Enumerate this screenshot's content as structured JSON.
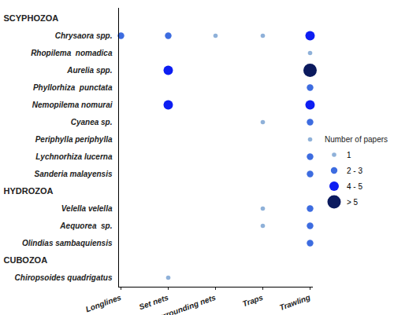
{
  "chart_data": {
    "type": "scatter",
    "categories": [
      "Longlines",
      "Set nets",
      "Surrounding nets",
      "Traps",
      "Trawling"
    ],
    "groups": [
      {
        "name": "SCYPHOZOA",
        "species": [
          "Chrysaora spp.",
          "Rhopilema  nomadica",
          "Aurelia spp.",
          "Phyllorhiza  punctata",
          "Nemopilema nomurai",
          "Cyanea sp.",
          "Periphylla periphylla",
          "Lychnorhiza lucerna",
          "Sanderia malayensis"
        ]
      },
      {
        "name": "HYDROZOA",
        "species": [
          "Velella velella",
          "Aequorea  sp.",
          "Olindias sambaquiensis"
        ]
      },
      {
        "name": "CUBOZOA",
        "species": [
          "Chiropsoides quadrigatus"
        ]
      }
    ],
    "legend_title": "Number of papers",
    "size_classes": [
      {
        "label": "1",
        "color": "#8fb1d9"
      },
      {
        "label": "2 - 3",
        "color": "#3d6ce0"
      },
      {
        "label": "4 - 5",
        "color": "#0d1ef2"
      },
      {
        "label": "> 5",
        "color": "#0b1a5e"
      }
    ],
    "legend": "right",
    "points": [
      {
        "species": "Chrysaora spp.",
        "gear": "Longlines",
        "papers": "2 - 3"
      },
      {
        "species": "Chrysaora spp.",
        "gear": "Set nets",
        "papers": "2 - 3"
      },
      {
        "species": "Chrysaora spp.",
        "gear": "Surrounding nets",
        "papers": "1"
      },
      {
        "species": "Chrysaora spp.",
        "gear": "Traps",
        "papers": "1"
      },
      {
        "species": "Chrysaora spp.",
        "gear": "Trawling",
        "papers": "4 - 5"
      },
      {
        "species": "Rhopilema  nomadica",
        "gear": "Trawling",
        "papers": "1"
      },
      {
        "species": "Aurelia spp.",
        "gear": "Set nets",
        "papers": "4 - 5"
      },
      {
        "species": "Aurelia spp.",
        "gear": "Trawling",
        "papers": "> 5"
      },
      {
        "species": "Phyllorhiza  punctata",
        "gear": "Trawling",
        "papers": "2 - 3"
      },
      {
        "species": "Nemopilema nomurai",
        "gear": "Set nets",
        "papers": "4 - 5"
      },
      {
        "species": "Nemopilema nomurai",
        "gear": "Trawling",
        "papers": "4 - 5"
      },
      {
        "species": "Cyanea sp.",
        "gear": "Traps",
        "papers": "1"
      },
      {
        "species": "Cyanea sp.",
        "gear": "Trawling",
        "papers": "2 - 3"
      },
      {
        "species": "Periphylla periphylla",
        "gear": "Trawling",
        "papers": "1"
      },
      {
        "species": "Lychnorhiza lucerna",
        "gear": "Trawling",
        "papers": "2 - 3"
      },
      {
        "species": "Sanderia malayensis",
        "gear": "Trawling",
        "papers": "2 - 3"
      },
      {
        "species": "Velella velella",
        "gear": "Traps",
        "papers": "1"
      },
      {
        "species": "Velella velella",
        "gear": "Trawling",
        "papers": "2 - 3"
      },
      {
        "species": "Aequorea  sp.",
        "gear": "Traps",
        "papers": "1"
      },
      {
        "species": "Aequorea  sp.",
        "gear": "Trawling",
        "papers": "2 - 3"
      },
      {
        "species": "Olindias sambaquiensis",
        "gear": "Trawling",
        "papers": "2 - 3"
      },
      {
        "species": "Chiropsoides quadrigatus",
        "gear": "Set nets",
        "papers": "1"
      }
    ]
  }
}
